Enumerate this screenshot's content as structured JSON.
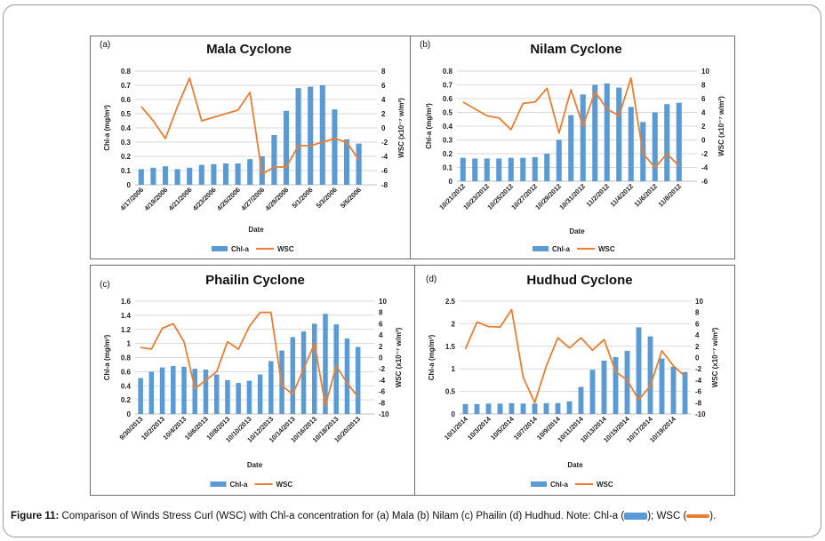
{
  "caption": {
    "label": "Figure 11:",
    "text": " Comparison of Winds Stress Curl (WSC) with Chl-a concentration for (a) Mala (b) Nilam (c) Phailin (d) Hudhud. Note: Chl-a (",
    "mid": "); WSC (",
    "end": ")."
  },
  "colors": {
    "chl": "#5b9bd5",
    "wsc": "#ed7d31"
  },
  "chart_data": [
    {
      "id": "a",
      "type": "bar+line",
      "panel_label": "(a)",
      "title": "Mala Cyclone",
      "xlabel": "Date",
      "ylabel": "Chl-a (mg/m³)",
      "y2label": "WSC (x10⁻⁷ w/m²)",
      "ylim": [
        0,
        0.8
      ],
      "yticks": [
        "0",
        "0.1",
        "0.2",
        "0.3",
        "0.4",
        "0.5",
        "0.6",
        "0.7",
        "0.8"
      ],
      "y2lim": [
        -8,
        8
      ],
      "y2ticks": [
        "-8",
        "-6",
        "-4",
        "-2",
        "0",
        "2",
        "4",
        "6",
        "8"
      ],
      "categories": [
        "4/17/2006",
        "4/18/2006",
        "4/19/2006",
        "4/20/2006",
        "4/21/2006",
        "4/22/2006",
        "4/23/2006",
        "4/24/2006",
        "4/25/2006",
        "4/26/2006",
        "4/27/2006",
        "4/28/2006",
        "4/29/2006",
        "4/30/2006",
        "5/1/2006",
        "5/2/2006",
        "5/3/2006",
        "5/4/2006",
        "5/5/2006",
        "5/6/2006"
      ],
      "xtick_labels": [
        "4/17/2006",
        "",
        "4/19/2006",
        "",
        "4/21/2006",
        "",
        "4/23/2006",
        "",
        "4/25/2006",
        "",
        "4/27/2006",
        "",
        "4/29/2006",
        "",
        "5/1/2006",
        "",
        "5/3/2006",
        "",
        "5/5/2006",
        ""
      ],
      "series": [
        {
          "name": "Chl-a",
          "axis": "left",
          "kind": "bar",
          "values": [
            0.11,
            0.12,
            0.13,
            0.11,
            0.12,
            0.14,
            0.145,
            0.15,
            0.15,
            0.18,
            0.2,
            0.35,
            0.52,
            0.68,
            0.69,
            0.7,
            0.53,
            0.32,
            0.29,
            null
          ]
        },
        {
          "name": "WSC",
          "axis": "right",
          "kind": "line",
          "values": [
            3,
            1,
            -1.5,
            3,
            7,
            1,
            1.5,
            2,
            2.5,
            5,
            -6.5,
            -5.5,
            -5.5,
            -2.5,
            -2.5,
            -2,
            -1.5,
            -2,
            -4.5,
            null
          ]
        }
      ],
      "legend": [
        "Chl-a",
        "WSC"
      ]
    },
    {
      "id": "b",
      "type": "bar+line",
      "panel_label": "(b)",
      "title": "Nilam Cyclone",
      "xlabel": "Date",
      "ylabel": "Chl-a (mg/m³)",
      "y2label": "WSC (x10⁻⁷ w/m²)",
      "ylim": [
        0,
        0.8
      ],
      "yticks": [
        "0",
        "0.1",
        "0.2",
        "0.3",
        "0.4",
        "0.5",
        "0.6",
        "0.7",
        "0.8"
      ],
      "y2lim": [
        -6,
        10
      ],
      "y2ticks": [
        "-6",
        "-4",
        "-2",
        "0",
        "2",
        "4",
        "6",
        "8",
        "10"
      ],
      "categories": [
        "10/21/2012",
        "10/22/2012",
        "10/23/2012",
        "10/24/2012",
        "10/25/2012",
        "10/26/2012",
        "10/27/2012",
        "10/28/2012",
        "10/29/2012",
        "10/30/2012",
        "10/31/2012",
        "11/1/2012",
        "11/2/2012",
        "11/3/2012",
        "11/4/2012",
        "11/5/2012",
        "11/6/2012",
        "11/7/2012",
        "11/8/2012",
        "11/9/2012"
      ],
      "xtick_labels": [
        "10/21/2012",
        "",
        "10/23/2012",
        "",
        "10/25/2012",
        "",
        "10/27/2012",
        "",
        "10/29/2012",
        "",
        "10/31/2012",
        "",
        "11/2/2012",
        "",
        "11/4/2012",
        "",
        "11/6/2012",
        "",
        "11/8/2012",
        ""
      ],
      "series": [
        {
          "name": "Chl-a",
          "axis": "left",
          "kind": "bar",
          "values": [
            0.17,
            0.165,
            0.165,
            0.165,
            0.17,
            0.17,
            0.175,
            0.2,
            0.3,
            0.48,
            0.63,
            0.7,
            0.71,
            0.68,
            0.54,
            0.43,
            0.5,
            0.56,
            0.57,
            null
          ]
        },
        {
          "name": "WSC",
          "axis": "right",
          "kind": "line",
          "values": [
            5.5,
            4.5,
            3.5,
            3.2,
            1.5,
            5.3,
            5.5,
            7.5,
            1,
            7.3,
            2,
            7,
            4.5,
            3.5,
            9,
            -2,
            -4,
            -2,
            -3.8,
            null
          ]
        }
      ],
      "legend": [
        "Chl-a",
        "WSC"
      ]
    },
    {
      "id": "c",
      "type": "bar+line",
      "panel_label": "(c)",
      "title": "Phailin Cyclone",
      "xlabel": "Date",
      "ylabel": "Chl-a (mg/m³)",
      "y2label": "WSC (x10⁻⁷ w/m²)",
      "ylim": [
        0,
        1.6
      ],
      "yticks": [
        "0",
        "0.2",
        "0.4",
        "0.6",
        "0.8",
        "1",
        "1.2",
        "1.4",
        "1.6"
      ],
      "y2lim": [
        -10,
        10
      ],
      "y2ticks": [
        "-10",
        "-8",
        "-6",
        "-4",
        "-2",
        "0",
        "2",
        "4",
        "6",
        "8",
        "10"
      ],
      "categories": [
        "9/30/2013",
        "10/1/2013",
        "10/2/2013",
        "10/3/2013",
        "10/4/2013",
        "10/5/2013",
        "10/6/2013",
        "10/7/2013",
        "10/8/2013",
        "10/9/2013",
        "10/10/2013",
        "10/11/2013",
        "10/12/2013",
        "10/13/2013",
        "10/14/2013",
        "10/15/2013",
        "10/16/2013",
        "10/17/2013",
        "10/18/2013",
        "10/19/2013",
        "10/20/2013",
        "10/21/2013"
      ],
      "xtick_labels": [
        "9/30/2013",
        "",
        "10/2/2013",
        "",
        "10/4/2013",
        "",
        "10/6/2013",
        "",
        "10/8/2013",
        "",
        "10/10/2013",
        "",
        "10/12/2013",
        "",
        "10/14/2013",
        "",
        "10/16/2013",
        "",
        "10/18/2013",
        "",
        "10/20/2013",
        ""
      ],
      "series": [
        {
          "name": "Chl-a",
          "axis": "left",
          "kind": "bar",
          "values": [
            0.51,
            0.6,
            0.66,
            0.68,
            0.67,
            0.64,
            0.63,
            0.56,
            0.48,
            0.44,
            0.47,
            0.56,
            0.75,
            0.9,
            1.09,
            1.17,
            1.28,
            1.42,
            1.27,
            1.07,
            0.95,
            null
          ]
        },
        {
          "name": "WSC",
          "axis": "right",
          "kind": "line",
          "values": [
            1.8,
            1.5,
            5.2,
            6,
            2.8,
            -5.5,
            -4,
            -2.5,
            2.8,
            1.5,
            5.5,
            8,
            8,
            -5,
            -6.5,
            -2,
            2.5,
            -8.5,
            -1.5,
            -4.5,
            -7,
            null
          ]
        }
      ],
      "legend": [
        "Chl-a",
        "WSC"
      ]
    },
    {
      "id": "d",
      "type": "bar+line",
      "panel_label": "(d)",
      "title": "Hudhud Cyclone",
      "xlabel": "Date",
      "ylabel": "Chl-a (mg/m³)",
      "y2label": "WSC (x10⁻⁷ w/m²)",
      "ylim": [
        0,
        2.5
      ],
      "yticks": [
        "0",
        "0.5",
        "1",
        "1.5",
        "2",
        "2.5"
      ],
      "y2lim": [
        -10,
        10
      ],
      "y2ticks": [
        "-10",
        "-8",
        "-6",
        "-4",
        "-2",
        "0",
        "2",
        "4",
        "6",
        "8",
        "10"
      ],
      "categories": [
        "10/1/2014",
        "10/2/2014",
        "10/3/2014",
        "10/4/2014",
        "10/5/2014",
        "10/6/2014",
        "10/7/2014",
        "10/8/2014",
        "10/9/2014",
        "10/10/2014",
        "10/11/2014",
        "10/12/2014",
        "10/13/2014",
        "10/14/2014",
        "10/15/2014",
        "10/16/2014",
        "10/17/2014",
        "10/18/2014",
        "10/19/2014",
        "10/20/2014"
      ],
      "xtick_labels": [
        "10/1/2014",
        "",
        "10/3/2014",
        "",
        "10/5/2014",
        "",
        "10/7/2014",
        "",
        "10/9/2014",
        "",
        "10/11/2014",
        "",
        "10/13/2014",
        "",
        "10/15/2014",
        "",
        "10/17/2014",
        "",
        "10/19/2014",
        ""
      ],
      "series": [
        {
          "name": "Chl-a",
          "axis": "left",
          "kind": "bar",
          "values": [
            0.22,
            0.22,
            0.23,
            0.23,
            0.24,
            0.23,
            0.23,
            0.24,
            0.24,
            0.28,
            0.6,
            0.98,
            1.18,
            1.26,
            1.4,
            1.92,
            1.72,
            1.23,
            1.05,
            0.93
          ]
        },
        {
          "name": "WSC",
          "axis": "right",
          "kind": "line",
          "values": [
            1.5,
            6.3,
            5.5,
            5.4,
            8.5,
            -3.5,
            -8,
            -1.5,
            3.5,
            1.7,
            3.5,
            1.3,
            3.2,
            -2.5,
            -4,
            -7.5,
            -5,
            1.2,
            -1.5,
            -3.3
          ]
        }
      ],
      "legend": [
        "Chl-a",
        "WSC"
      ]
    }
  ]
}
